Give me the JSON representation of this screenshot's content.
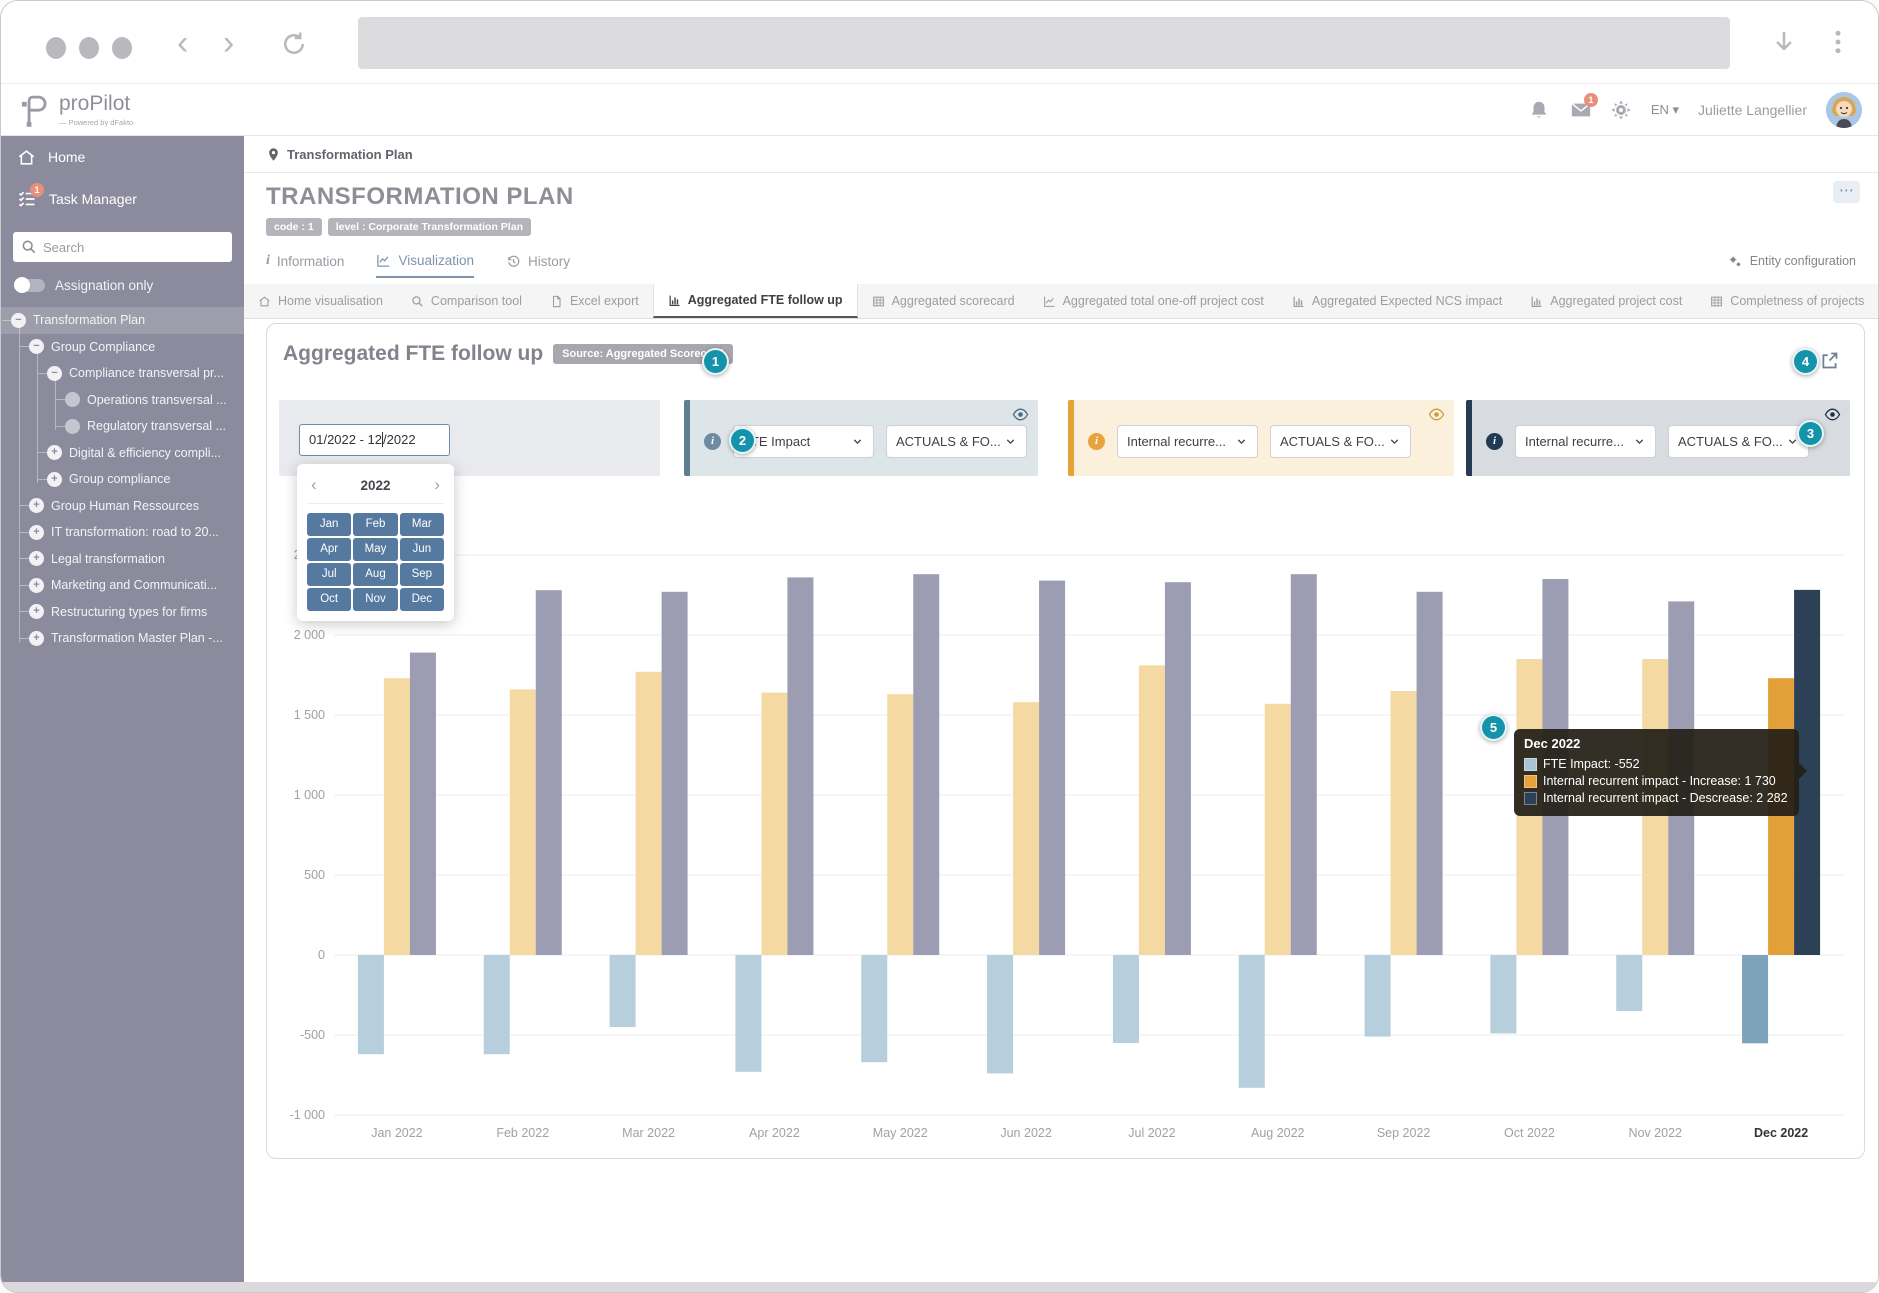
{
  "browser": {
    "icons": [
      "back-chevron",
      "forward-chevron",
      "refresh",
      "download",
      "kebab-menu"
    ]
  },
  "app_header": {
    "logo_text": "proPilot",
    "logo_sub": "— Powered by dFakto",
    "mail_badge": "1",
    "language": "EN",
    "user_name": "Juliette Langellier",
    "icons": [
      "bell",
      "mail",
      "gear",
      "avatar"
    ]
  },
  "sidebar": {
    "items": [
      {
        "label": "Home",
        "icon": "home"
      },
      {
        "label": "Task Manager",
        "icon": "checklist",
        "badge": "1"
      }
    ],
    "search_placeholder": "Search",
    "toggle_label": "Assignation only",
    "tree": [
      {
        "label": "Transformation Plan",
        "level": 0,
        "expander": "minus",
        "selected": true
      },
      {
        "label": "Group Compliance",
        "level": 1,
        "expander": "minus"
      },
      {
        "label": "Compliance transversal pr...",
        "level": 2,
        "expander": "minus"
      },
      {
        "label": "Operations transversal ...",
        "level": 3,
        "expander": "dot"
      },
      {
        "label": "Regulatory transversal ...",
        "level": 3,
        "expander": "dot"
      },
      {
        "label": "Digital & efficiency compli...",
        "level": 2,
        "expander": "plus"
      },
      {
        "label": "Group compliance",
        "level": 2,
        "expander": "plus"
      },
      {
        "label": "Group Human Ressources",
        "level": 1,
        "expander": "plus"
      },
      {
        "label": "IT transformation: road to 20...",
        "level": 1,
        "expander": "plus"
      },
      {
        "label": "Legal transformation",
        "level": 1,
        "expander": "plus"
      },
      {
        "label": "Marketing and Communicati...",
        "level": 1,
        "expander": "plus"
      },
      {
        "label": "Restructuring types for firms",
        "level": 1,
        "expander": "plus"
      },
      {
        "label": "Transformation Master Plan -...",
        "level": 1,
        "expander": "plus"
      }
    ]
  },
  "page": {
    "breadcrumb": "Transformation Plan",
    "title": "TRANSFORMATION PLAN",
    "badges": {
      "code": "code : 1",
      "level": "level : Corporate Transformation Plan"
    },
    "tabs": [
      {
        "label": "Information",
        "icon": "info-i"
      },
      {
        "label": "Visualization",
        "icon": "line-chart",
        "active": true
      },
      {
        "label": "History",
        "icon": "history"
      }
    ],
    "entity_config_label": "Entity configuration",
    "subtabs": [
      {
        "label": "Home visualisation",
        "icon": "home"
      },
      {
        "label": "Comparison tool",
        "icon": "magnifier"
      },
      {
        "label": "Excel export",
        "icon": "file"
      },
      {
        "label": "Aggregated FTE follow up",
        "icon": "bar-chart",
        "active": true
      },
      {
        "label": "Aggregated scorecard",
        "icon": "table"
      },
      {
        "label": "Aggregated total one-off project cost",
        "icon": "line-chart"
      },
      {
        "label": "Aggregated Expected NCS impact",
        "icon": "bar-chart"
      },
      {
        "label": "Aggregated project cost",
        "icon": "bar-chart"
      },
      {
        "label": "Completness of projects",
        "icon": "table"
      }
    ]
  },
  "panel": {
    "title": "Aggregated FTE follow up",
    "source_badge": "Source: Aggregated Scorecard",
    "date_range": {
      "value_before_caret": "01/2022 - 12",
      "value_after_caret": "/2022"
    },
    "datepicker": {
      "year": "2022",
      "months": [
        "Jan",
        "Feb",
        "Mar",
        "Apr",
        "May",
        "Jun",
        "Jul",
        "Aug",
        "Sep",
        "Oct",
        "Nov",
        "Dec"
      ]
    },
    "filters": [
      {
        "theme": "blue",
        "series": "FTE Impact",
        "display": "ACTUALS & FO...",
        "accent": "#5e7e92",
        "bg": "#dee5e9"
      },
      {
        "theme": "orange",
        "series": "Internal recurre...",
        "display": "ACTUALS & FO...",
        "accent": "#e4a238",
        "bg": "#faf0db"
      },
      {
        "theme": "navy",
        "series": "Internal recurre...",
        "display": "ACTUALS & FO...",
        "accent": "#273c52",
        "bg": "#d8dbdf"
      }
    ],
    "annotations": [
      "1",
      "2",
      "3",
      "4",
      "5"
    ]
  },
  "tooltip": {
    "title": "Dec 2022",
    "rows": [
      {
        "color": "#a9c3d6",
        "text": "FTE Impact: -552"
      },
      {
        "color": "#e8a33d",
        "text": "Internal recurrent impact - Increase: 1 730"
      },
      {
        "color": "#2d4156",
        "text": "Internal recurrent impact - Descrease: 2 282"
      }
    ]
  },
  "chart_data": {
    "type": "bar",
    "title": "Aggregated FTE follow up",
    "categories": [
      "Jan 2022",
      "Feb 2022",
      "Mar 2022",
      "Apr 2022",
      "May 2022",
      "Jun 2022",
      "Jul 2022",
      "Aug 2022",
      "Sep 2022",
      "Oct 2022",
      "Nov 2022",
      "Dec 2022"
    ],
    "series": [
      {
        "name": "FTE Impact",
        "color": "#b7cedc",
        "highlight_color": "#7da3ba",
        "values": [
          -620,
          -620,
          -450,
          -730,
          -670,
          -740,
          -550,
          -830,
          -510,
          -490,
          -350,
          -552
        ]
      },
      {
        "name": "Internal recurrent impact - Increase",
        "color": "#f5d9a2",
        "highlight_color": "#e2a038",
        "values": [
          1730,
          1660,
          1770,
          1640,
          1630,
          1580,
          1810,
          1570,
          1650,
          1850,
          1850,
          1730
        ]
      },
      {
        "name": "Internal recurrent impact - Descrease",
        "color": "#9c9cb2",
        "highlight_color": "#2d4156",
        "values": [
          1890,
          2280,
          2270,
          2360,
          2380,
          2340,
          2330,
          2380,
          2270,
          2350,
          2210,
          2282
        ]
      }
    ],
    "highlight_index": 11,
    "ylim": [
      -1000,
      2500
    ],
    "yticks": [
      {
        "v": -1000,
        "label": "-1 000"
      },
      {
        "v": -500,
        "label": "-500"
      },
      {
        "v": 0,
        "label": "0"
      },
      {
        "v": 500,
        "label": "500"
      },
      {
        "v": 1000,
        "label": "1 000"
      },
      {
        "v": 1500,
        "label": "1 500"
      },
      {
        "v": 2000,
        "label": "2 000"
      },
      {
        "v": 2500,
        "label": "2 500"
      }
    ],
    "grid": true,
    "legend": "none"
  }
}
